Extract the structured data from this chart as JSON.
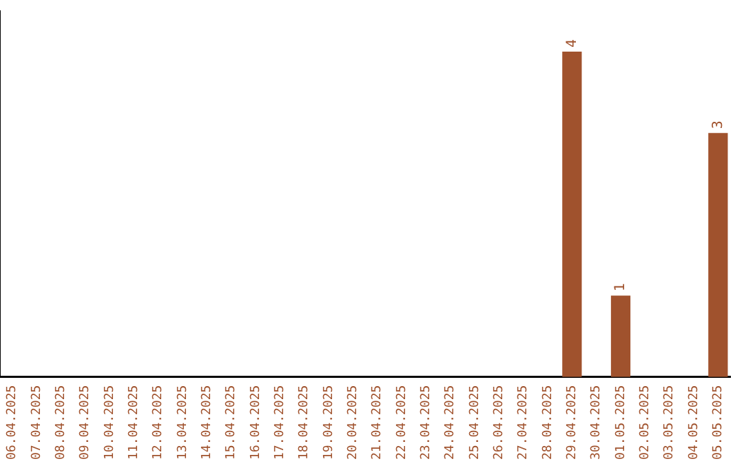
{
  "chart_data": {
    "type": "bar",
    "categories": [
      "06.04.2025",
      "07.04.2025",
      "08.04.2025",
      "09.04.2025",
      "10.04.2025",
      "11.04.2025",
      "12.04.2025",
      "13.04.2025",
      "14.04.2025",
      "15.04.2025",
      "16.04.2025",
      "17.04.2025",
      "18.04.2025",
      "19.04.2025",
      "20.04.2025",
      "21.04.2025",
      "22.04.2025",
      "23.04.2025",
      "24.04.2025",
      "25.04.2025",
      "26.04.2025",
      "27.04.2025",
      "28.04.2025",
      "29.04.2025",
      "30.04.2025",
      "01.05.2025",
      "02.05.2025",
      "03.05.2025",
      "04.05.2025",
      "05.05.2025"
    ],
    "values": [
      null,
      null,
      null,
      null,
      null,
      null,
      null,
      null,
      null,
      null,
      null,
      null,
      null,
      null,
      null,
      null,
      null,
      null,
      null,
      null,
      null,
      null,
      null,
      4,
      null,
      1,
      null,
      null,
      null,
      3
    ],
    "value_labels": [
      null,
      null,
      null,
      null,
      null,
      null,
      null,
      null,
      null,
      null,
      null,
      null,
      null,
      null,
      null,
      null,
      null,
      null,
      null,
      null,
      null,
      null,
      null,
      "4",
      null,
      "1",
      null,
      null,
      null,
      "3"
    ],
    "color": "#a0522d",
    "grid": false,
    "legend": false
  }
}
